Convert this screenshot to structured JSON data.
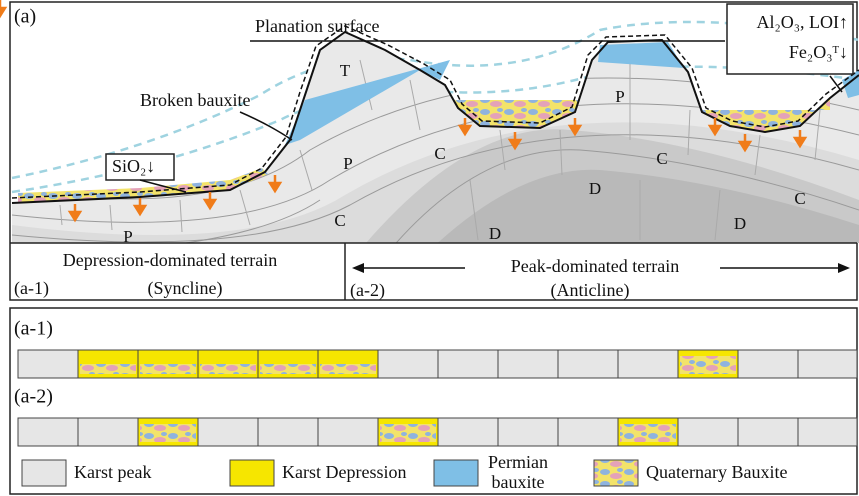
{
  "panel_label": "(a)",
  "planation_surface": "Planation surface",
  "enrichment": "Al₂O₃, LOI↑",
  "depletion": "Fe₂O₃ᵀ↓",
  "broken_bauxite": "Broken bauxite",
  "silica": "SiO₂↓",
  "strata": [
    "T",
    "P",
    "P",
    "P",
    "C",
    "C",
    "C",
    "C",
    "D",
    "D",
    "D"
  ],
  "terrain": [
    {
      "id": "(a-1)",
      "name": "Depression-dominated terrain",
      "structure": "(Syncline)"
    },
    {
      "id": "(a-2)",
      "name": "Peak-dominated terrain",
      "structure": "(Anticline)"
    }
  ],
  "rows": [
    "(a-1)",
    "(a-2)"
  ],
  "legend": [
    {
      "label": "Karst peak"
    },
    {
      "label": "Karst Depression"
    },
    {
      "lines": [
        "Permian",
        "bauxite"
      ]
    },
    {
      "label": "Quaternary Bauxite"
    }
  ]
}
